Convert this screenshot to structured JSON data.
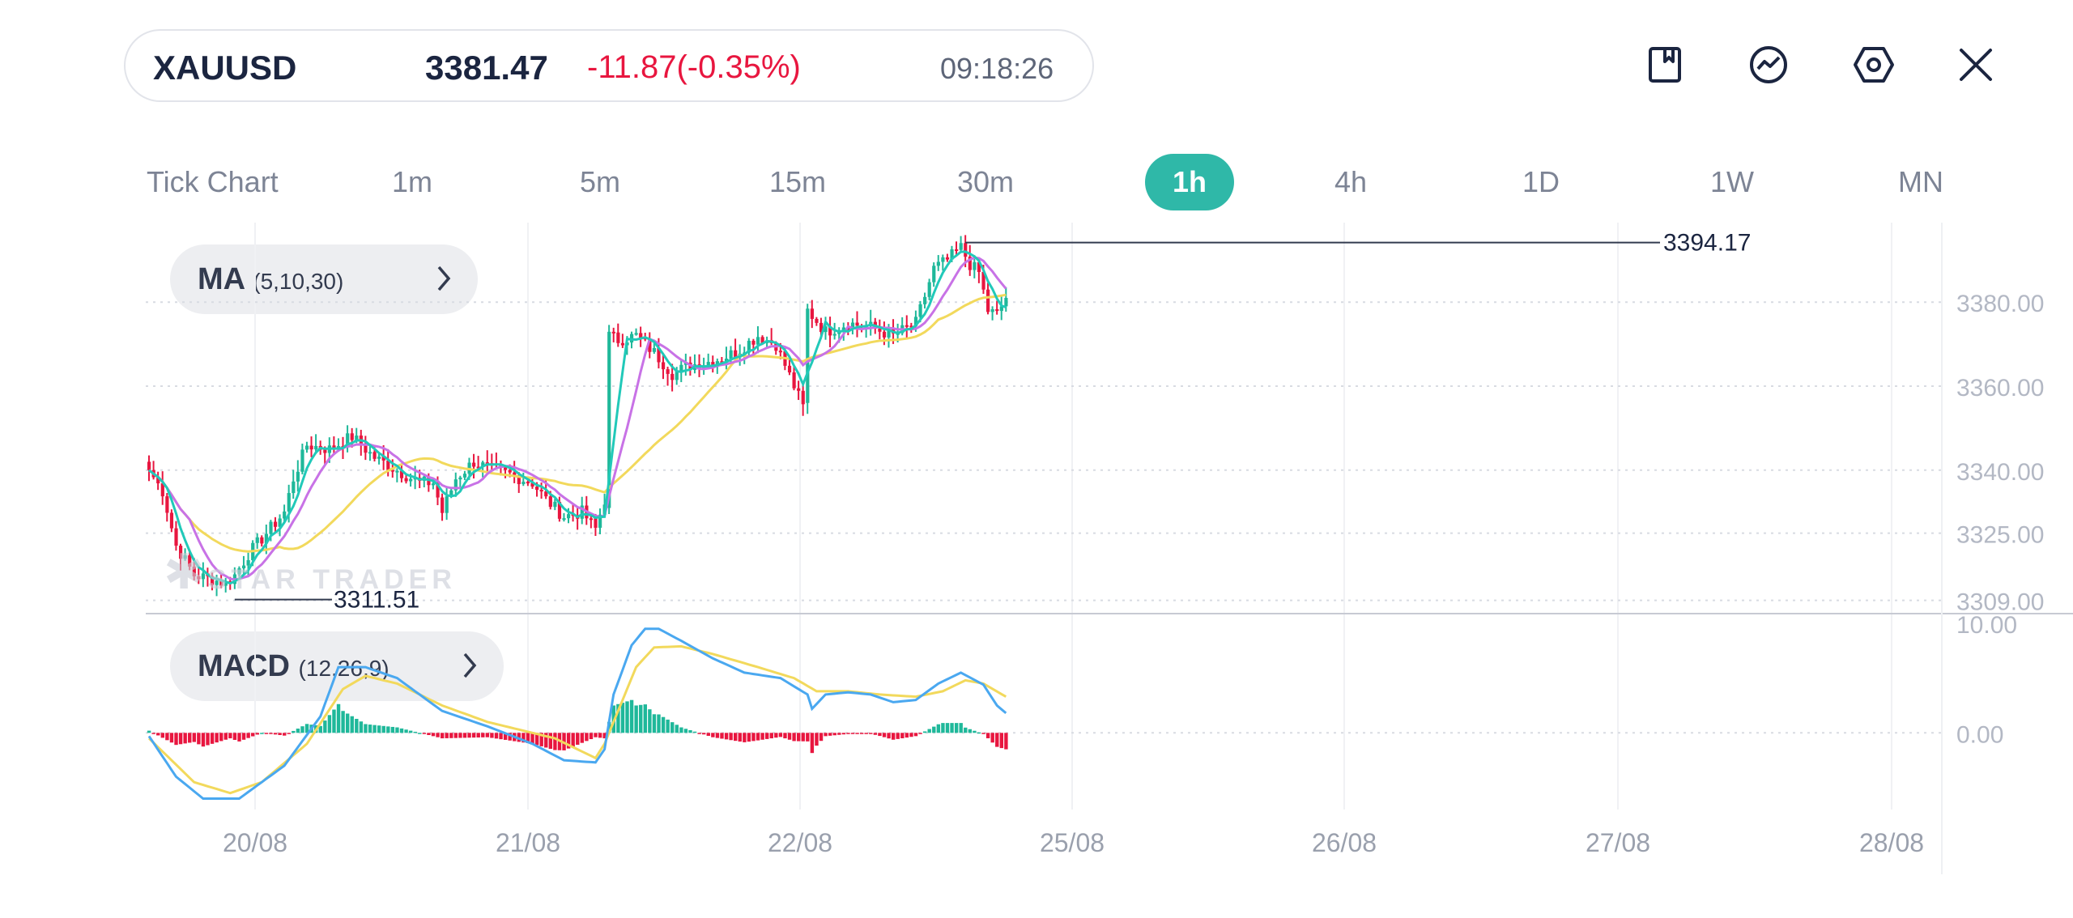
{
  "header": {
    "symbol": "XAUUSD",
    "price": "3381.47",
    "change": "-11.87(-0.35%)",
    "time": "09:18:26"
  },
  "toolbar": {
    "icons": [
      "bookmark-icon",
      "indicator-icon",
      "settings-icon",
      "close-icon"
    ]
  },
  "timeframes": [
    "Tick Chart",
    "1m",
    "5m",
    "15m",
    "30m",
    "1h",
    "4h",
    "1D",
    "1W",
    "MN"
  ],
  "active_timeframe": "1h",
  "indicators": {
    "ma": {
      "name": "MA",
      "params": "(5,10,30)"
    },
    "macd": {
      "name": "MACD",
      "params": "(12,26,9)"
    }
  },
  "watermark": "STAR TRADER",
  "colors": {
    "bull": "#1fb89a",
    "bear": "#e8163f",
    "ma5": "#21c9b9",
    "ma10": "#c872e6",
    "ma30": "#f2d95c",
    "dif": "#4aa8f0",
    "dea": "#f2d95c",
    "accent": "#2fb8a8"
  },
  "chart_data": [
    {
      "type": "candlestick",
      "interval": "1h",
      "x_tick_labels": [
        "20/08",
        "21/08",
        "22/08",
        "25/08",
        "26/08",
        "27/08",
        "28/08"
      ],
      "y_tick_labels": [
        "3380.00",
        "3360.00",
        "3340.00",
        "3325.00",
        "3309.00"
      ],
      "ylim": [
        3307,
        3397
      ],
      "annotations": {
        "high": "3394.17",
        "low": "3311.51"
      },
      "anchors": [
        [
          0,
          3340
        ],
        [
          3,
          3335
        ],
        [
          6,
          3322
        ],
        [
          10,
          3315
        ],
        [
          14,
          3314
        ],
        [
          17,
          3313
        ],
        [
          19,
          3315
        ],
        [
          22,
          3320
        ],
        [
          26,
          3325
        ],
        [
          30,
          3330
        ],
        [
          32,
          3338
        ],
        [
          35,
          3346
        ],
        [
          40,
          3345
        ],
        [
          45,
          3348
        ],
        [
          50,
          3343
        ],
        [
          55,
          3340
        ],
        [
          60,
          3337
        ],
        [
          63,
          3337
        ],
        [
          65,
          3330
        ],
        [
          68,
          3338
        ],
        [
          72,
          3342
        ],
        [
          76,
          3340
        ],
        [
          80,
          3339
        ],
        [
          85,
          3337
        ],
        [
          88,
          3333
        ],
        [
          92,
          3329
        ],
        [
          96,
          3330
        ],
        [
          99,
          3326
        ],
        [
          101,
          3333
        ],
        [
          102,
          3372
        ],
        [
          104,
          3371
        ],
        [
          108,
          3372
        ],
        [
          112,
          3368
        ],
        [
          116,
          3363
        ],
        [
          120,
          3365
        ],
        [
          125,
          3366
        ],
        [
          130,
          3368
        ],
        [
          135,
          3372
        ],
        [
          139,
          3370
        ],
        [
          141,
          3365
        ],
        [
          143,
          3360
        ],
        [
          145,
          3355
        ],
        [
          146,
          3378
        ],
        [
          150,
          3373
        ],
        [
          155,
          3375
        ],
        [
          160,
          3374
        ],
        [
          165,
          3372
        ],
        [
          170,
          3375
        ],
        [
          174,
          3388
        ],
        [
          177,
          3390
        ],
        [
          180,
          3393
        ],
        [
          182,
          3389
        ],
        [
          184,
          3387
        ],
        [
          186,
          3378
        ],
        [
          188,
          3377
        ],
        [
          190,
          3381
        ]
      ],
      "macd_panel": {
        "name": "MACD",
        "y_tick_labels": [
          "10.00",
          "0.00"
        ],
        "ylim": [
          -7,
          10
        ],
        "series": [
          {
            "name": "DIF",
            "anchors": [
              [
                0,
                -0.3
              ],
              [
                6,
                -4
              ],
              [
                12,
                -6
              ],
              [
                20,
                -6
              ],
              [
                30,
                -3
              ],
              [
                38,
                1.5
              ],
              [
                42,
                6
              ],
              [
                48,
                6
              ],
              [
                55,
                5
              ],
              [
                65,
                2
              ],
              [
                75,
                0.6
              ],
              [
                85,
                -1
              ],
              [
                92,
                -2.5
              ],
              [
                99,
                -2.7
              ],
              [
                101,
                -1.5
              ],
              [
                103,
                3.5
              ],
              [
                107,
                8
              ],
              [
                110,
                9.5
              ],
              [
                113,
                9.5
              ],
              [
                118,
                8.4
              ],
              [
                125,
                6.8
              ],
              [
                132,
                5.5
              ],
              [
                140,
                5
              ],
              [
                146,
                3.5
              ],
              [
                147,
                2.2
              ],
              [
                150,
                3.5
              ],
              [
                155,
                3.7
              ],
              [
                160,
                3.5
              ],
              [
                165,
                2.8
              ],
              [
                170,
                3
              ],
              [
                175,
                4.5
              ],
              [
                180,
                5.5
              ],
              [
                185,
                4.4
              ],
              [
                188,
                2.5
              ],
              [
                190,
                1.8
              ]
            ]
          },
          {
            "name": "DEA",
            "anchors": [
              [
                0,
                -0.5
              ],
              [
                10,
                -4.5
              ],
              [
                18,
                -5.5
              ],
              [
                25,
                -4.5
              ],
              [
                35,
                -1
              ],
              [
                43,
                4
              ],
              [
                48,
                5.2
              ],
              [
                55,
                4.5
              ],
              [
                65,
                2.5
              ],
              [
                75,
                1
              ],
              [
                90,
                -0.5
              ],
              [
                99,
                -2.3
              ],
              [
                101,
                -1
              ],
              [
                104,
                2
              ],
              [
                108,
                6
              ],
              [
                112,
                7.8
              ],
              [
                118,
                7.9
              ],
              [
                125,
                7.2
              ],
              [
                135,
                6
              ],
              [
                143,
                5
              ],
              [
                148,
                3.8
              ],
              [
                155,
                3.8
              ],
              [
                162,
                3.5
              ],
              [
                170,
                3.3
              ],
              [
                176,
                3.8
              ],
              [
                181,
                4.8
              ],
              [
                185,
                4.5
              ],
              [
                190,
                3.3
              ]
            ]
          }
        ]
      }
    }
  ]
}
